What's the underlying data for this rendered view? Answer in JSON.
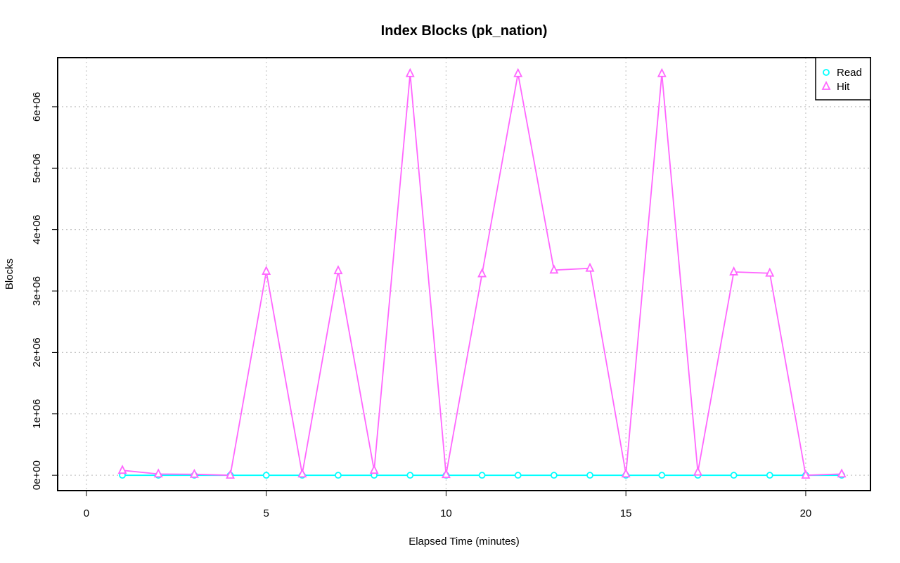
{
  "chart_data": {
    "type": "line",
    "title": "Index Blocks (pk_nation)",
    "xlabel": "Elapsed Time (minutes)",
    "ylabel": "Blocks",
    "xlim": [
      -0.8,
      21.8
    ],
    "ylim": [
      -250000,
      6800000
    ],
    "x_ticks": [
      0,
      5,
      10,
      15,
      20
    ],
    "x_tick_labels": [
      "0",
      "5",
      "10",
      "15",
      "20"
    ],
    "y_ticks": [
      0,
      1000000,
      2000000,
      3000000,
      4000000,
      5000000,
      6000000
    ],
    "y_tick_labels": [
      "0e+00",
      "1e+06",
      "2e+06",
      "3e+06",
      "4e+06",
      "5e+06",
      "6e+06"
    ],
    "grid": true,
    "legend_position": "top-right",
    "x": [
      1,
      2,
      3,
      4,
      5,
      6,
      7,
      8,
      9,
      10,
      11,
      12,
      13,
      14,
      15,
      16,
      17,
      18,
      19,
      20,
      21
    ],
    "series": [
      {
        "name": "Read",
        "color": "#00ffff",
        "marker": "circle",
        "values": [
          0,
          0,
          0,
          0,
          0,
          0,
          0,
          0,
          0,
          0,
          0,
          0,
          0,
          0,
          0,
          0,
          0,
          0,
          0,
          0,
          0
        ]
      },
      {
        "name": "Hit",
        "color": "#ff66ff",
        "marker": "triangle",
        "values": [
          80000,
          20000,
          15000,
          0,
          3320000,
          20000,
          3330000,
          80000,
          6540000,
          10000,
          3280000,
          6540000,
          3340000,
          3370000,
          20000,
          6540000,
          50000,
          3310000,
          3290000,
          0,
          20000
        ]
      }
    ]
  }
}
